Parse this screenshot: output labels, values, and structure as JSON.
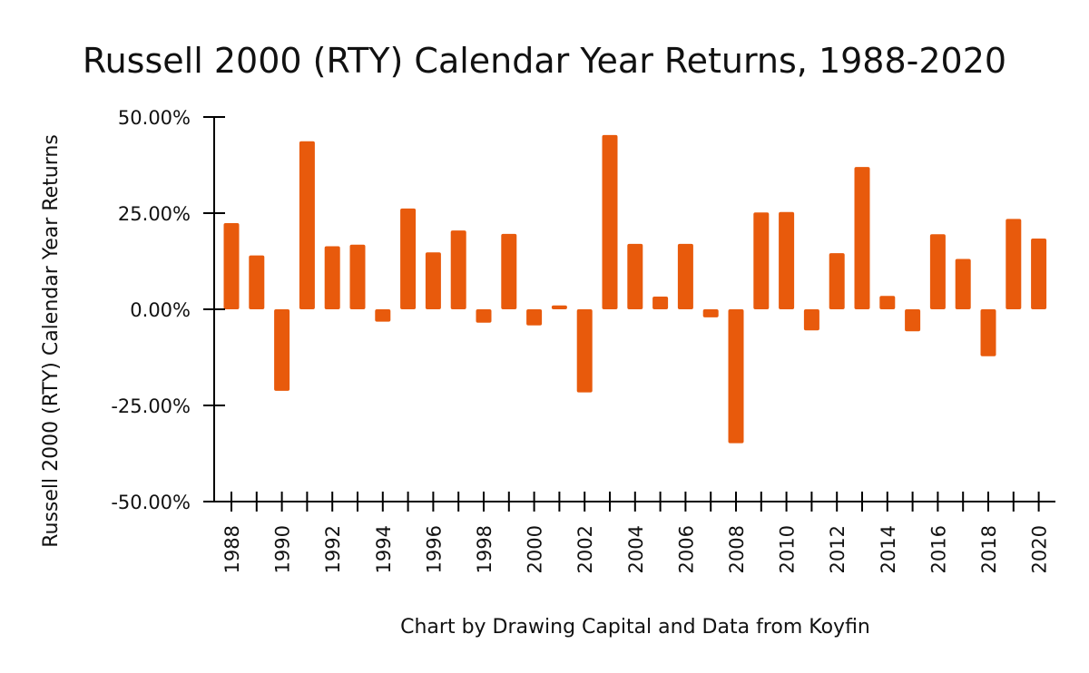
{
  "chart_data": {
    "type": "bar",
    "title": "Russell 2000 (RTY) Calendar Year Returns, 1988-2020",
    "xlabel": "",
    "ylabel": "Russell 2000 (RTY) Calendar Year Returns",
    "credit": "Chart by Drawing Capital and Data from Koyfin",
    "ylim": [
      -50,
      50
    ],
    "yticks": [
      50,
      25,
      0,
      -25,
      -50
    ],
    "ytick_labels": [
      "50.00%",
      "25.00%",
      "0.00%",
      "-25.00%",
      "-50.00%"
    ],
    "categories": [
      "1988",
      "1989",
      "1990",
      "1991",
      "1992",
      "1993",
      "1994",
      "1995",
      "1996",
      "1997",
      "1998",
      "1999",
      "2000",
      "2001",
      "2002",
      "2003",
      "2004",
      "2005",
      "2006",
      "2007",
      "2008",
      "2009",
      "2010",
      "2011",
      "2012",
      "2013",
      "2014",
      "2015",
      "2016",
      "2017",
      "2018",
      "2019",
      "2020"
    ],
    "xtick_labels": [
      "1988",
      "1990",
      "1992",
      "1994",
      "1996",
      "1998",
      "2000",
      "2002",
      "2004",
      "2006",
      "2008",
      "2010",
      "2012",
      "2014",
      "2016",
      "2018",
      "2020"
    ],
    "values": [
      22.4,
      14.0,
      -21.2,
      43.7,
      16.4,
      16.8,
      -3.2,
      26.2,
      14.8,
      20.5,
      -3.5,
      19.6,
      -4.2,
      1.0,
      -21.6,
      45.3,
      17.0,
      3.3,
      17.0,
      -2.1,
      -34.8,
      25.2,
      25.3,
      -5.5,
      14.6,
      37.0,
      3.5,
      -5.7,
      19.5,
      13.1,
      -12.2,
      23.5,
      18.4
    ],
    "bar_color": "#e85a0c",
    "grid": false,
    "legend": "none"
  }
}
